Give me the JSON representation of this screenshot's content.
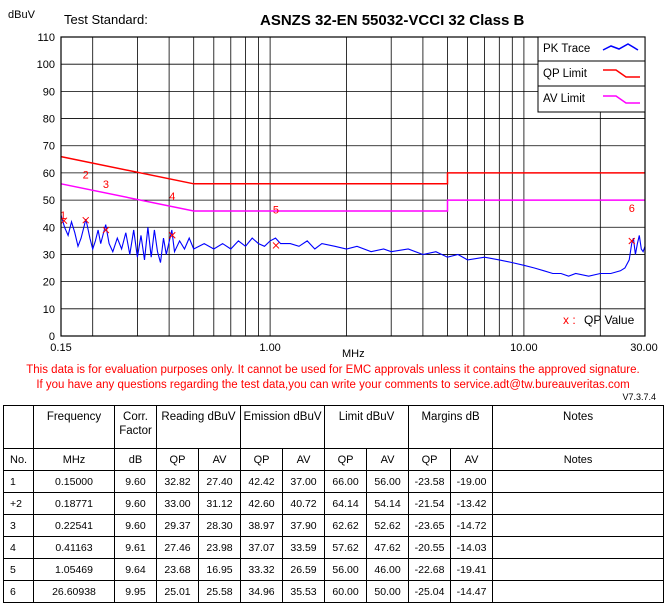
{
  "chart_data": {
    "type": "line",
    "title": "ASNZS 32-EN 55032-VCCI 32 Class B",
    "test_standard_label": "Test Standard:",
    "ylabel": "dBuV",
    "xlabel": "MHz",
    "x_scale": "log",
    "xlim": [
      0.15,
      30.0
    ],
    "ylim": [
      0,
      110
    ],
    "y_ticks": [
      0,
      10,
      20,
      30,
      40,
      50,
      60,
      70,
      80,
      90,
      100,
      110
    ],
    "y_tick_labels": [
      "0",
      "10",
      "20",
      "30",
      "40",
      "50",
      "60",
      "70",
      "80",
      "90",
      "100",
      "110"
    ],
    "x_tick_labels": [
      {
        "value": 0.15,
        "label": "0.15"
      },
      {
        "value": 1.0,
        "label": "1.00"
      },
      {
        "value": 10.0,
        "label": "10.00"
      },
      {
        "value": 30.0,
        "label": "30.00"
      }
    ],
    "x_gridlines": [
      0.2,
      0.3,
      0.4,
      0.5,
      0.6,
      0.7,
      0.8,
      0.9,
      1,
      2,
      3,
      4,
      5,
      6,
      7,
      8,
      9,
      10,
      20,
      30
    ],
    "grid": true,
    "legend_position": "top-right",
    "legend": [
      {
        "name": "PK Trace",
        "color": "#0000ff"
      },
      {
        "name": "QP Limit",
        "color": "#ff0000"
      },
      {
        "name": "AV Limit",
        "color": "#ff00ff"
      }
    ],
    "qp_limit": [
      [
        0.15,
        66
      ],
      [
        0.5,
        56
      ],
      [
        5,
        56
      ],
      [
        5,
        60
      ],
      [
        30,
        60
      ]
    ],
    "av_limit": [
      [
        0.15,
        56
      ],
      [
        0.5,
        46
      ],
      [
        5,
        46
      ],
      [
        5,
        50
      ],
      [
        30,
        50
      ]
    ],
    "pk_trace": [
      [
        0.15,
        44.5
      ],
      [
        0.155,
        40
      ],
      [
        0.16,
        37
      ],
      [
        0.165,
        42
      ],
      [
        0.17,
        38
      ],
      [
        0.175,
        33
      ],
      [
        0.18,
        36
      ],
      [
        0.188,
        43
      ],
      [
        0.195,
        36
      ],
      [
        0.2,
        32
      ],
      [
        0.205,
        35
      ],
      [
        0.21,
        39
      ],
      [
        0.215,
        34
      ],
      [
        0.225,
        41
      ],
      [
        0.232,
        34
      ],
      [
        0.24,
        31
      ],
      [
        0.25,
        36
      ],
      [
        0.26,
        32
      ],
      [
        0.27,
        38
      ],
      [
        0.28,
        30
      ],
      [
        0.29,
        39
      ],
      [
        0.3,
        29
      ],
      [
        0.31,
        37
      ],
      [
        0.32,
        28
      ],
      [
        0.33,
        40
      ],
      [
        0.34,
        29
      ],
      [
        0.35,
        39
      ],
      [
        0.36,
        31
      ],
      [
        0.37,
        27
      ],
      [
        0.38,
        36
      ],
      [
        0.39,
        30
      ],
      [
        0.41,
        39
      ],
      [
        0.42,
        31
      ],
      [
        0.44,
        35
      ],
      [
        0.46,
        32
      ],
      [
        0.48,
        36
      ],
      [
        0.5,
        32
      ],
      [
        0.55,
        34
      ],
      [
        0.6,
        32
      ],
      [
        0.65,
        34
      ],
      [
        0.7,
        32
      ],
      [
        0.75,
        35
      ],
      [
        0.8,
        33
      ],
      [
        0.85,
        36
      ],
      [
        0.9,
        34
      ],
      [
        0.95,
        33
      ],
      [
        1.0,
        35
      ],
      [
        1.05,
        36
      ],
      [
        1.1,
        34
      ],
      [
        1.2,
        34
      ],
      [
        1.3,
        33
      ],
      [
        1.4,
        35
      ],
      [
        1.5,
        32
      ],
      [
        1.6,
        34
      ],
      [
        1.8,
        33
      ],
      [
        2.0,
        32
      ],
      [
        2.2,
        33
      ],
      [
        2.5,
        31
      ],
      [
        2.8,
        32
      ],
      [
        3.0,
        31
      ],
      [
        3.5,
        32
      ],
      [
        4.0,
        30
      ],
      [
        4.5,
        31
      ],
      [
        5.0,
        29
      ],
      [
        5.5,
        30
      ],
      [
        6.0,
        28
      ],
      [
        7.0,
        29
      ],
      [
        8.0,
        28
      ],
      [
        9.0,
        27
      ],
      [
        10.0,
        26
      ],
      [
        11,
        25
      ],
      [
        12,
        24
      ],
      [
        13,
        23
      ],
      [
        14,
        23
      ],
      [
        15,
        22
      ],
      [
        16,
        23
      ],
      [
        18,
        22
      ],
      [
        20,
        23
      ],
      [
        22,
        23
      ],
      [
        24,
        24
      ],
      [
        25,
        25
      ],
      [
        26,
        28
      ],
      [
        26.6,
        34
      ],
      [
        27,
        36
      ],
      [
        27.5,
        30
      ],
      [
        28,
        34
      ],
      [
        28.5,
        37
      ],
      [
        29,
        32
      ],
      [
        29.5,
        31
      ],
      [
        30,
        33
      ]
    ],
    "markers": [
      {
        "label": "1",
        "x": 0.15,
        "y": 44.5
      },
      {
        "label": "2",
        "x": 0.18771,
        "y": 59.5
      },
      {
        "label": "3",
        "x": 0.22541,
        "y": 56.0
      },
      {
        "label": "4",
        "x": 0.41163,
        "y": 51.5
      },
      {
        "label": "5",
        "x": 1.05469,
        "y": 46.5
      },
      {
        "label": "6",
        "x": 26.60938,
        "y": 47.0
      }
    ],
    "qp_points": [
      {
        "x": 0.15,
        "y": 42.42
      },
      {
        "x": 0.18771,
        "y": 42.6
      },
      {
        "x": 0.22541,
        "y": 38.97
      },
      {
        "x": 0.41163,
        "y": 37.07
      },
      {
        "x": 1.05469,
        "y": 33.32
      },
      {
        "x": 26.60938,
        "y": 34.96
      }
    ],
    "qp_legend_symbol": "x :",
    "qp_legend_text": "QP   Value"
  },
  "disclaimer": {
    "line1": "This data is for evaluation purposes only.  It cannot be used for EMC approvals unless it contains the approved signature.",
    "line2": "If you have any questions regarding the test data,you can write your comments to  service.adt@tw.bureauveritas.com",
    "version": "V7.3.7.4"
  },
  "table": {
    "group_headers": {
      "frequency": "Frequency",
      "corr": "Corr. Factor",
      "reading": "Reading dBuV",
      "emission": "Emission dBuV",
      "limit": "Limit dBuV",
      "margins": "Margins dB",
      "notes": "Notes"
    },
    "sub_headers": [
      "No.",
      "MHz",
      "dB",
      "QP",
      "AV",
      "QP",
      "AV",
      "QP",
      "AV",
      "QP",
      "AV",
      "Notes"
    ],
    "rows": [
      [
        "1",
        "0.15000",
        "9.60",
        "32.82",
        "27.40",
        "42.42",
        "37.00",
        "66.00",
        "56.00",
        "-23.58",
        "-19.00",
        ""
      ],
      [
        "+2",
        "0.18771",
        "9.60",
        "33.00",
        "31.12",
        "42.60",
        "40.72",
        "64.14",
        "54.14",
        "-21.54",
        "-13.42",
        ""
      ],
      [
        "3",
        "0.22541",
        "9.60",
        "29.37",
        "28.30",
        "38.97",
        "37.90",
        "62.62",
        "52.62",
        "-23.65",
        "-14.72",
        ""
      ],
      [
        "4",
        "0.41163",
        "9.61",
        "27.46",
        "23.98",
        "37.07",
        "33.59",
        "57.62",
        "47.62",
        "-20.55",
        "-14.03",
        ""
      ],
      [
        "5",
        "1.05469",
        "9.64",
        "23.68",
        "16.95",
        "33.32",
        "26.59",
        "56.00",
        "46.00",
        "-22.68",
        "-19.41",
        ""
      ],
      [
        "6",
        "26.60938",
        "9.95",
        "25.01",
        "25.58",
        "34.96",
        "35.53",
        "60.00",
        "50.00",
        "-25.04",
        "-14.47",
        ""
      ]
    ]
  }
}
